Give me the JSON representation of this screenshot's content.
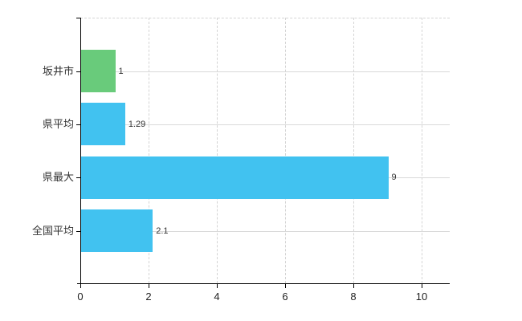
{
  "chart_data": {
    "type": "bar",
    "orientation": "horizontal",
    "title": "",
    "xlabel": "",
    "ylabel": "",
    "categories": [
      "坂井市",
      "県平均",
      "県最大",
      "全国平均"
    ],
    "values": [
      1,
      1.29,
      9,
      2.1
    ],
    "value_labels": [
      "1",
      "1.29",
      "9",
      "2.1"
    ],
    "bar_colors": [
      "#69cb7b",
      "#41c2f0",
      "#41c2f0",
      "#41c2f0"
    ],
    "x_ticks": [
      0,
      2,
      4,
      6,
      8,
      10
    ],
    "x_tick_labels": [
      "0",
      "2",
      "4",
      "6",
      "8",
      "10"
    ],
    "xlim": [
      0,
      10.8
    ],
    "grid": {
      "vertical_gridlines": "dashed",
      "horizontal_gridlines": "solid",
      "top_border": "dashed"
    },
    "legend": "none"
  },
  "colors": {
    "bar_green": "#69cb7b",
    "bar_blue": "#41c2f0",
    "gridline": "#d9d9d9",
    "axis": "#000000",
    "text": "#333333",
    "background": "#ffffff"
  }
}
